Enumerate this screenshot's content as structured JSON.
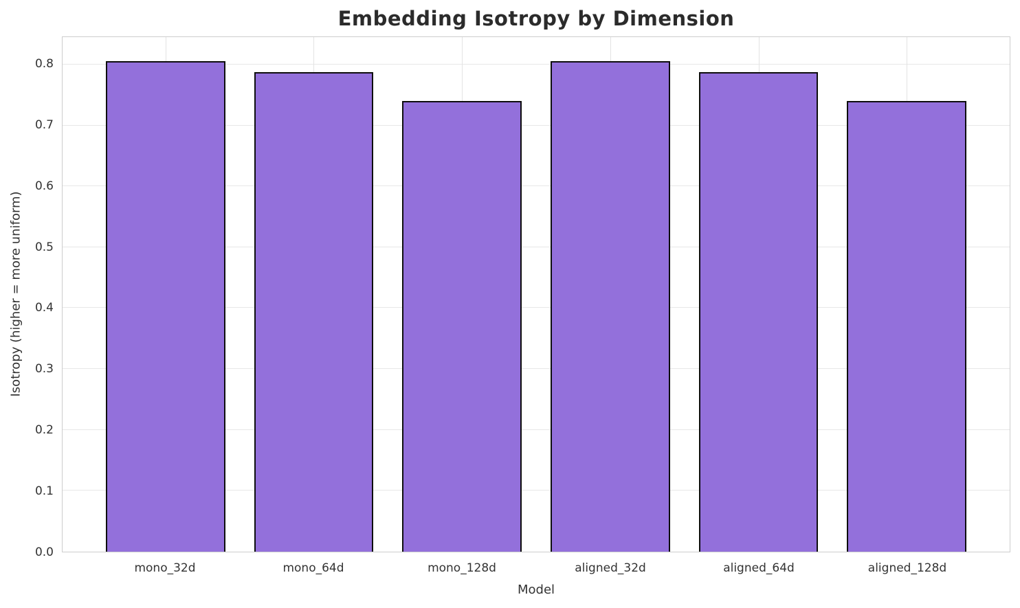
{
  "chart_data": {
    "type": "bar",
    "title": "Embedding Isotropy by Dimension",
    "xlabel": "Model",
    "ylabel": "Isotropy (higher = more uniform)",
    "categories": [
      "mono_32d",
      "mono_64d",
      "mono_128d",
      "aligned_32d",
      "aligned_64d",
      "aligned_128d"
    ],
    "values": [
      0.805,
      0.787,
      0.74,
      0.805,
      0.787,
      0.74
    ],
    "ylim": [
      0,
      0.845
    ],
    "yticks": [
      "0.0",
      "0.1",
      "0.2",
      "0.3",
      "0.4",
      "0.5",
      "0.6",
      "0.7",
      "0.8"
    ],
    "grid": "on",
    "legend": "none",
    "bar_color": "#9370DB",
    "bar_edge_color": "#0d0d0d",
    "grid_color": "#e7e7e7",
    "text_color": "#333333",
    "title_color": "#2b2b2b"
  }
}
